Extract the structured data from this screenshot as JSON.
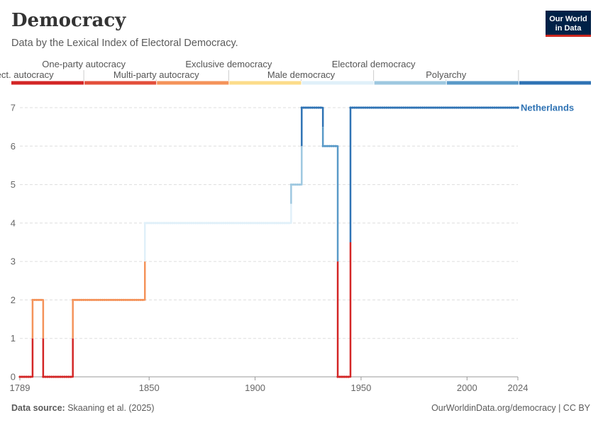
{
  "header": {
    "title": "Democracy",
    "subtitle": "Data by the Lexical Index of Electoral Democracy."
  },
  "logo": {
    "line1": "Our World",
    "line2": "in Data"
  },
  "footer": {
    "source_label": "Data source:",
    "source_text": "Skaaning et al. (2025)",
    "right_text": "OurWorldinData.org/democracy | CC BY"
  },
  "chart_data": {
    "type": "line",
    "title": "Democracy",
    "subtitle": "Data by the Lexical Index of Electoral Democracy.",
    "xlim": [
      1789,
      2024
    ],
    "ylim": [
      0,
      7
    ],
    "x_ticks": [
      1789,
      1850,
      1900,
      1950,
      2000,
      2024
    ],
    "y_ticks": [
      0,
      1,
      2,
      3,
      4,
      5,
      6,
      7
    ],
    "grid": "horizontal dashed",
    "legend": {
      "type": "color-scale",
      "position": "top",
      "categories": [
        {
          "value": 0,
          "label": "Non-elect. autocracy",
          "color": "#d32626"
        },
        {
          "value": 1,
          "label": "One-party autocracy",
          "color": "#e34f3b"
        },
        {
          "value": 2,
          "label": "Multi-party autocracy",
          "color": "#f4935a"
        },
        {
          "value": 3,
          "label": "Exclusive democracy",
          "color": "#fcdc8a"
        },
        {
          "value": 4,
          "label": "Male democracy",
          "color": "#e0f0f9"
        },
        {
          "value": 5,
          "label": "Electoral democracy",
          "color": "#9ec8e0"
        },
        {
          "value": 6,
          "label": "Polyarchy",
          "color": "#5a9ac8"
        },
        {
          "value": 7,
          "label": "",
          "color": "#2f73b4"
        }
      ]
    },
    "series": [
      {
        "name": "Netherlands",
        "steps": [
          {
            "from": 1789,
            "to": 1795,
            "value": 0
          },
          {
            "from": 1795,
            "to": 1800,
            "value": 2
          },
          {
            "from": 1800,
            "to": 1814,
            "value": 0
          },
          {
            "from": 1814,
            "to": 1848,
            "value": 2
          },
          {
            "from": 1848,
            "to": 1917,
            "value": 4
          },
          {
            "from": 1917,
            "to": 1922,
            "value": 5
          },
          {
            "from": 1922,
            "to": 1932,
            "value": 7
          },
          {
            "from": 1932,
            "to": 1939,
            "value": 6
          },
          {
            "from": 1939,
            "to": 1945,
            "value": 0
          },
          {
            "from": 1945,
            "to": 2024,
            "value": 7
          }
        ]
      }
    ]
  }
}
